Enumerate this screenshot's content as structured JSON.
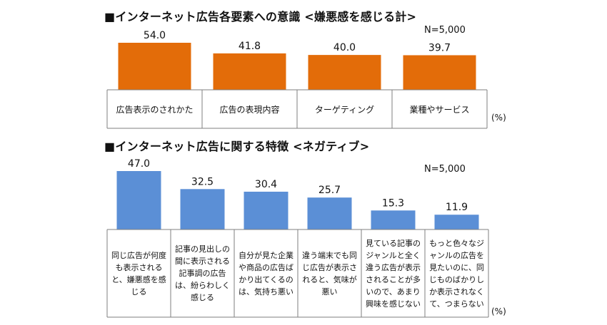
{
  "section1": {
    "title": "■インターネット広告各要素への意識 <嫌悪感を感じる計>",
    "note": "N=5,000",
    "unit": "(%)"
  },
  "section2": {
    "title": "■インターネット広告に関する特徴 <ネガティブ>",
    "note": "N=5,000",
    "unit": "(%)"
  },
  "chart_data": [
    {
      "type": "bar",
      "title": "インターネット広告各要素への意識 <嫌悪感を感じる計>",
      "categories": [
        "広告表示のされかた",
        "広告の表現内容",
        "ターゲティング",
        "業種やサービス"
      ],
      "values": [
        54.0,
        41.8,
        40.0,
        39.7
      ],
      "value_labels": [
        "54.0",
        "41.8",
        "40.0",
        "39.7"
      ],
      "ylim": [
        0,
        60
      ],
      "color": "#E36C09",
      "grid": false,
      "unit": "(%)"
    },
    {
      "type": "bar",
      "title": "インターネット広告に関する特徴 <ネガティブ>",
      "categories": [
        "同じ広告が何度も表示されると、嫌悪感を感じる",
        "記事の見出しの間に表示される記事調の広告は、紛らわしく感じる",
        "自分が見た企業や商品の広告ばかり出てくるのは、気持ち悪い",
        "違う端末でも同じ広告が表示されると、気味が悪い",
        "見ている記事のジャンルと全く違う広告が表示されることが多いので、あまり興味を感じない",
        "もっと色々なジャンルの広告を見たいのに、同じものばかりしか表示されなくて、つまらない"
      ],
      "values": [
        47.0,
        32.5,
        30.4,
        25.7,
        15.3,
        11.9
      ],
      "value_labels": [
        "47.0",
        "32.5",
        "30.4",
        "25.7",
        "15.3",
        "11.9"
      ],
      "ylim": [
        0,
        50
      ],
      "color": "#5B8FD6",
      "grid": false,
      "unit": "(%)"
    }
  ]
}
